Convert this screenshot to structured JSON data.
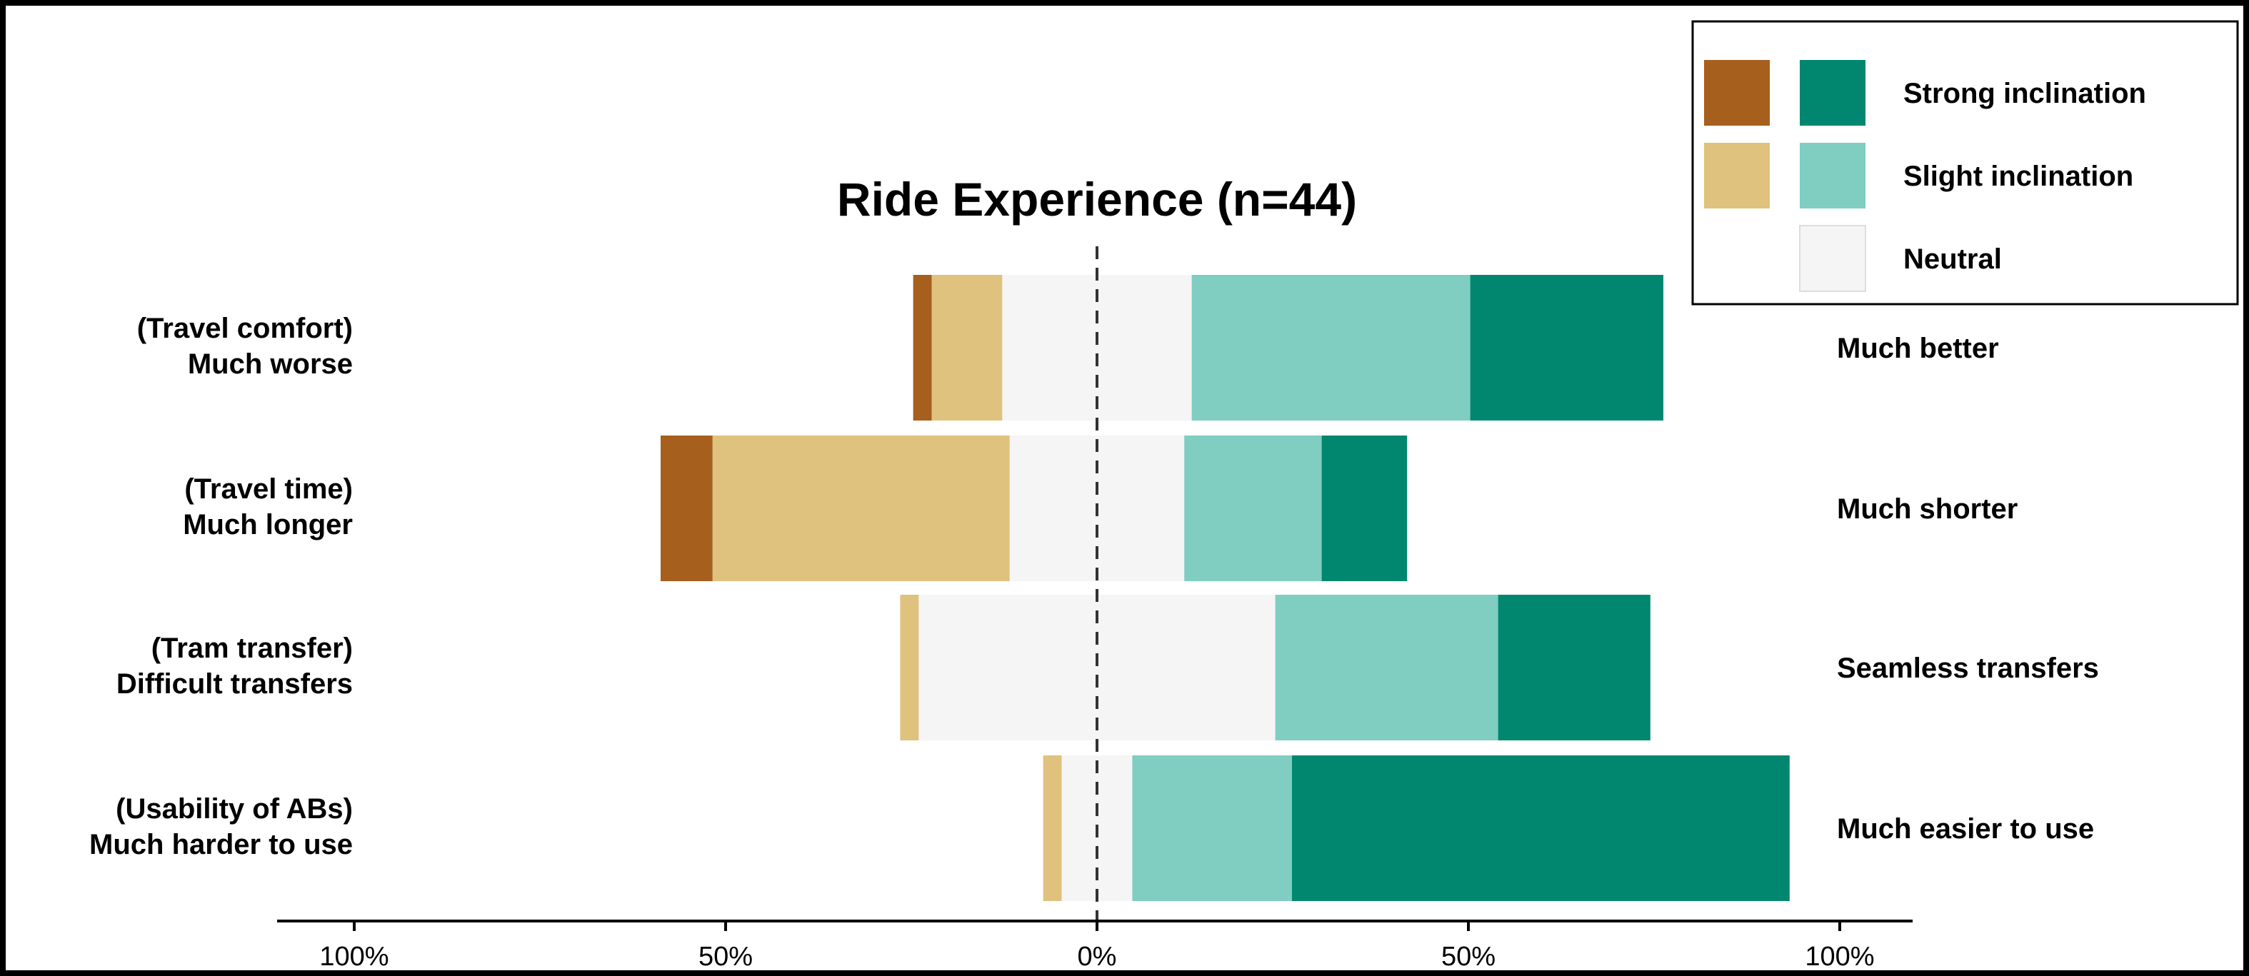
{
  "chart_data": {
    "type": "bar",
    "orientation": "horizontal",
    "stacked": "diverging",
    "title": "Ride Experience (n=44)",
    "categories": [
      {
        "name": "Travel comfort",
        "left_label": [
          "(Travel comfort)",
          "Much worse"
        ],
        "right_label": "Much better"
      },
      {
        "name": "Travel time",
        "left_label": [
          "(Travel time)",
          "Much longer"
        ],
        "right_label": "Much shorter"
      },
      {
        "name": "Tram transfer",
        "left_label": [
          "(Tram transfer)",
          "Difficult transfers"
        ],
        "right_label": "Seamless transfers"
      },
      {
        "name": "Usability of ABs",
        "left_label": [
          "(Usability of ABs)",
          "Much harder to use"
        ],
        "right_label": "Much easier to use"
      }
    ],
    "series": [
      {
        "name": "Strong inclination",
        "side": "negative",
        "color": "#A65F1C",
        "values": [
          2.5,
          7,
          0,
          0
        ]
      },
      {
        "name": "Slight inclination",
        "side": "negative",
        "color": "#DFC27D",
        "values": [
          9.5,
          40,
          2.5,
          2.5
        ]
      },
      {
        "name": "Neutral",
        "side": "center",
        "color": "#F5F5F5",
        "values": [
          25.5,
          23.5,
          48,
          9.5
        ]
      },
      {
        "name": "Slight inclination",
        "side": "positive",
        "color": "#80CDC1",
        "values": [
          37.5,
          18.5,
          30,
          21.5
        ]
      },
      {
        "name": "Strong inclination",
        "side": "positive",
        "color": "#01876F",
        "values": [
          26,
          11.5,
          20.5,
          67
        ]
      }
    ],
    "xlim": [
      -100,
      100
    ],
    "xticks": [
      -100,
      -50,
      0,
      50,
      100
    ],
    "xtick_labels": [
      "100%",
      "50%",
      "0%",
      "50%",
      "100%"
    ],
    "zero_line": "dashed",
    "legend": {
      "position": "top-right",
      "entries": [
        {
          "label": "Strong inclination",
          "colors": [
            "#A65F1C",
            "#01876F"
          ]
        },
        {
          "label": "Slight inclination",
          "colors": [
            "#DFC27D",
            "#80CDC1"
          ]
        },
        {
          "label": "Neutral",
          "colors": [
            "#F5F5F5"
          ]
        }
      ]
    }
  }
}
